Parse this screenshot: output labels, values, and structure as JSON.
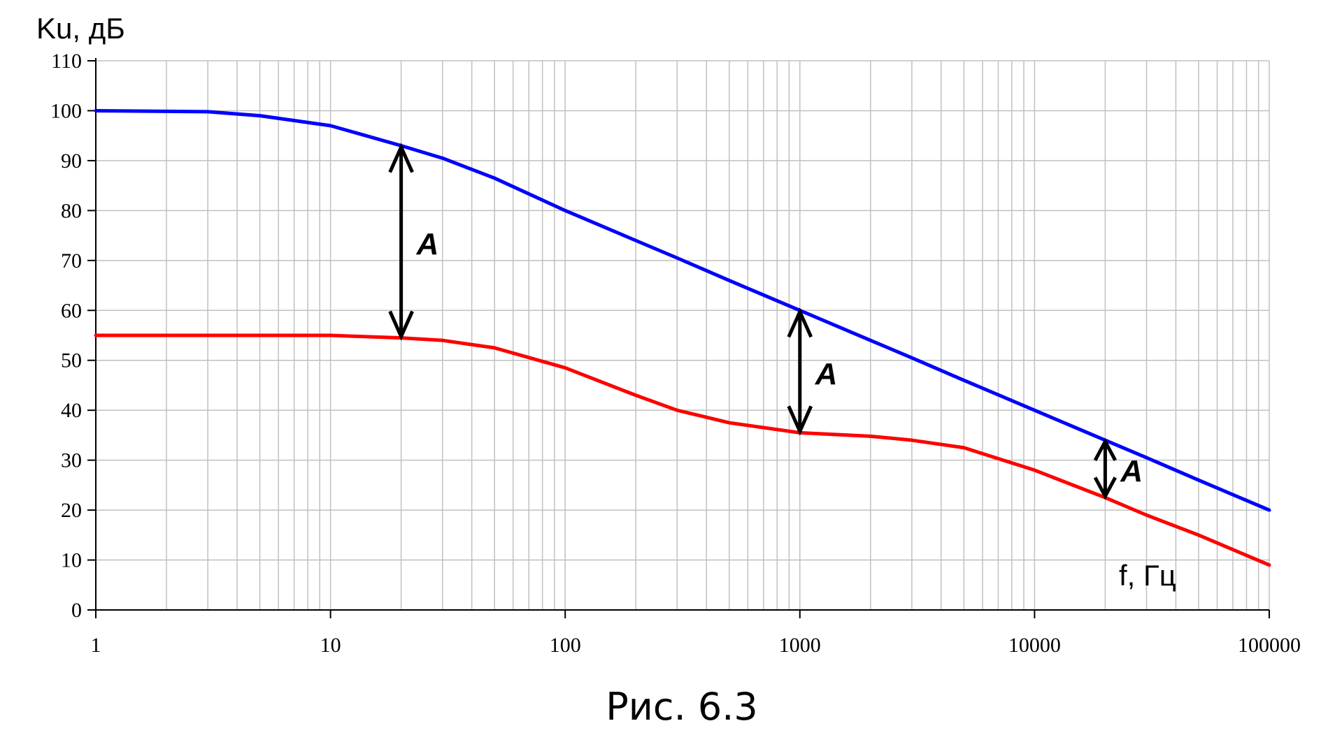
{
  "chart_data": {
    "type": "line",
    "x_scale": "log",
    "xlim": [
      1,
      100000
    ],
    "ylim": [
      0,
      110
    ],
    "y_ticks": [
      0,
      10,
      20,
      30,
      40,
      50,
      60,
      70,
      80,
      90,
      100,
      110
    ],
    "x_ticks": [
      1,
      10,
      100,
      1000,
      10000,
      100000
    ],
    "x_tick_labels": [
      "1",
      "10",
      "100",
      "1000",
      "10000",
      "100000"
    ],
    "ylabel": "Ku, дБ",
    "xlabel": "f, Гц",
    "grid": true,
    "caption": "Рис. 6.3",
    "series": [
      {
        "color": "#0000ff",
        "points": [
          [
            1,
            100
          ],
          [
            3,
            99.8
          ],
          [
            5,
            99
          ],
          [
            10,
            97
          ],
          [
            20,
            93
          ],
          [
            30,
            90.5
          ],
          [
            50,
            86.5
          ],
          [
            100,
            80
          ],
          [
            200,
            74
          ],
          [
            300,
            70.5
          ],
          [
            500,
            66
          ],
          [
            1000,
            60
          ],
          [
            2000,
            54
          ],
          [
            3000,
            50.5
          ],
          [
            5000,
            46
          ],
          [
            10000,
            40
          ],
          [
            20000,
            34
          ],
          [
            30000,
            30.5
          ],
          [
            50000,
            26
          ],
          [
            100000,
            20
          ]
        ]
      },
      {
        "color": "#ff0000",
        "points": [
          [
            1,
            55
          ],
          [
            5,
            55
          ],
          [
            10,
            55
          ],
          [
            15,
            54.7
          ],
          [
            20,
            54.5
          ],
          [
            30,
            54
          ],
          [
            50,
            52.5
          ],
          [
            100,
            48.5
          ],
          [
            200,
            43
          ],
          [
            300,
            40
          ],
          [
            500,
            37.5
          ],
          [
            1000,
            35.5
          ],
          [
            2000,
            34.8
          ],
          [
            3000,
            34
          ],
          [
            5000,
            32.5
          ],
          [
            10000,
            28
          ],
          [
            20000,
            22.5
          ],
          [
            30000,
            19
          ],
          [
            50000,
            15
          ],
          [
            100000,
            9
          ]
        ]
      }
    ],
    "annotations": [
      {
        "label": "A",
        "x": 20,
        "y_top": 93,
        "y_bottom": 54.5
      },
      {
        "label": "A",
        "x": 1000,
        "y_top": 60,
        "y_bottom": 35.5
      },
      {
        "label": "A",
        "x": 20000,
        "y_top": 34,
        "y_bottom": 22.5
      }
    ]
  }
}
